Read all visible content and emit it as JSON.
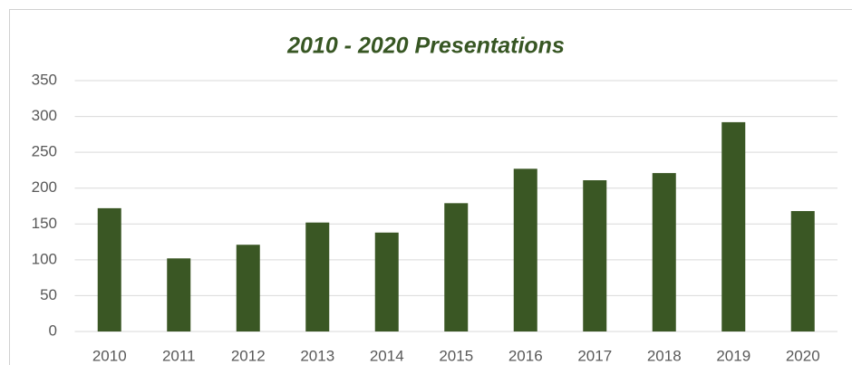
{
  "chart_data": {
    "type": "bar",
    "title": "2010 - 2020 Presentations",
    "categories": [
      "2010",
      "2011",
      "2012",
      "2013",
      "2014",
      "2015",
      "2016",
      "2017",
      "2018",
      "2019",
      "2020"
    ],
    "values": [
      172,
      102,
      121,
      152,
      138,
      179,
      227,
      211,
      221,
      292,
      168
    ],
    "color": "#3a5724",
    "ylim": [
      0,
      350
    ],
    "yticks": [
      0,
      50,
      100,
      150,
      200,
      250,
      300,
      350
    ],
    "grid": true
  }
}
